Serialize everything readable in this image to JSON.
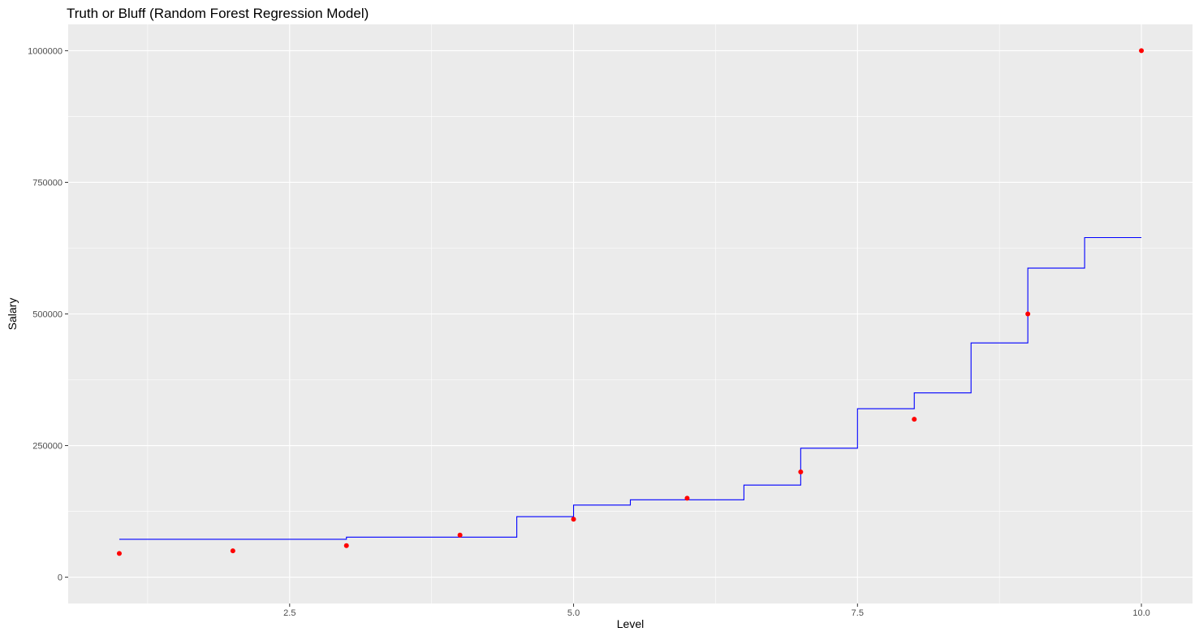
{
  "chart_data": {
    "type": "scatter",
    "title": "Truth or Bluff (Random Forest Regression Model)",
    "xlabel": "Level",
    "ylabel": "Salary",
    "xlim": [
      0.55,
      10.45
    ],
    "ylim": [
      -50000,
      1050000
    ],
    "x_ticks": [
      2.5,
      5.0,
      7.5,
      10.0
    ],
    "x_tick_labels": [
      "2.5",
      "5.0",
      "7.5",
      "10.0"
    ],
    "y_ticks": [
      0,
      250000,
      500000,
      750000,
      1000000
    ],
    "y_tick_labels": [
      "0",
      "250000",
      "500000",
      "750000",
      "1000000"
    ],
    "grid": true,
    "legend": "none",
    "colors": {
      "panel": "#ebebeb",
      "grid": "#ffffff",
      "points": "#ff0000",
      "line": "#0000ff"
    },
    "series": [
      {
        "kind": "points",
        "x": [
          1,
          2,
          3,
          4,
          5,
          6,
          7,
          8,
          9,
          10
        ],
        "y": [
          45000,
          50000,
          60000,
          80000,
          110000,
          150000,
          200000,
          300000,
          500000,
          1000000
        ]
      },
      {
        "kind": "step-line",
        "x": [
          1.0,
          3.0,
          3.0,
          4.5,
          4.5,
          5.0,
          5.0,
          5.5,
          5.5,
          6.5,
          6.5,
          7.0,
          7.0,
          7.5,
          7.5,
          8.0,
          8.0,
          8.5,
          8.5,
          9.0,
          9.0,
          9.5,
          9.5,
          10.0
        ],
        "y": [
          72000,
          72000,
          76000,
          76000,
          115000,
          115000,
          137000,
          137000,
          147000,
          147000,
          175000,
          175000,
          245000,
          245000,
          320000,
          320000,
          350000,
          350000,
          445000,
          445000,
          587000,
          587000,
          645000,
          645000
        ]
      }
    ]
  }
}
